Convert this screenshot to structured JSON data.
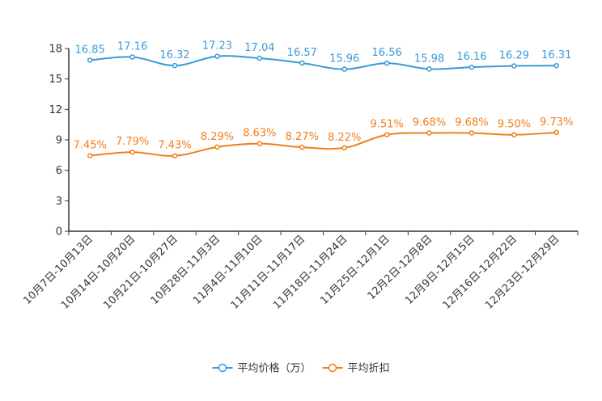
{
  "chart_data": {
    "type": "line",
    "title": "",
    "xlabel": "",
    "ylabel": "",
    "ylim": [
      0,
      18
    ],
    "yticks": [
      0,
      3,
      6,
      9,
      12,
      15,
      18
    ],
    "grid": false,
    "legend_position": "bottom",
    "categories": [
      "10月7日-10月13日",
      "10月14日-10月20日",
      "10月21日-10月27日",
      "10月28日-11月3日",
      "11月4日-11月10日",
      "11月11日-11月17日",
      "11月18日-11月24日",
      "11月25日-12月1日",
      "12月2日-12月8日",
      "12月9日-12月15日",
      "12月16日-12月22日",
      "12月23日-12月29日"
    ],
    "series": [
      {
        "name": "平均价格（万）",
        "color": "#3a9ad9",
        "values": [
          16.85,
          17.16,
          16.32,
          17.23,
          17.04,
          16.57,
          15.96,
          16.56,
          15.98,
          16.16,
          16.29,
          16.31
        ],
        "labels": [
          "16.85",
          "17.16",
          "16.32",
          "17.23",
          "17.04",
          "16.57",
          "15.96",
          "16.56",
          "15.98",
          "16.16",
          "16.29",
          "16.31"
        ]
      },
      {
        "name": "平均折扣",
        "color": "#f07f1b",
        "values": [
          7.45,
          7.79,
          7.43,
          8.29,
          8.63,
          8.27,
          8.22,
          9.51,
          9.68,
          9.68,
          9.5,
          9.73
        ],
        "labels": [
          "7.45%",
          "7.79%",
          "7.43%",
          "8.29%",
          "8.63%",
          "8.27%",
          "8.22%",
          "9.51%",
          "9.68%",
          "9.68%",
          "9.50%",
          "9.73%"
        ]
      }
    ]
  }
}
